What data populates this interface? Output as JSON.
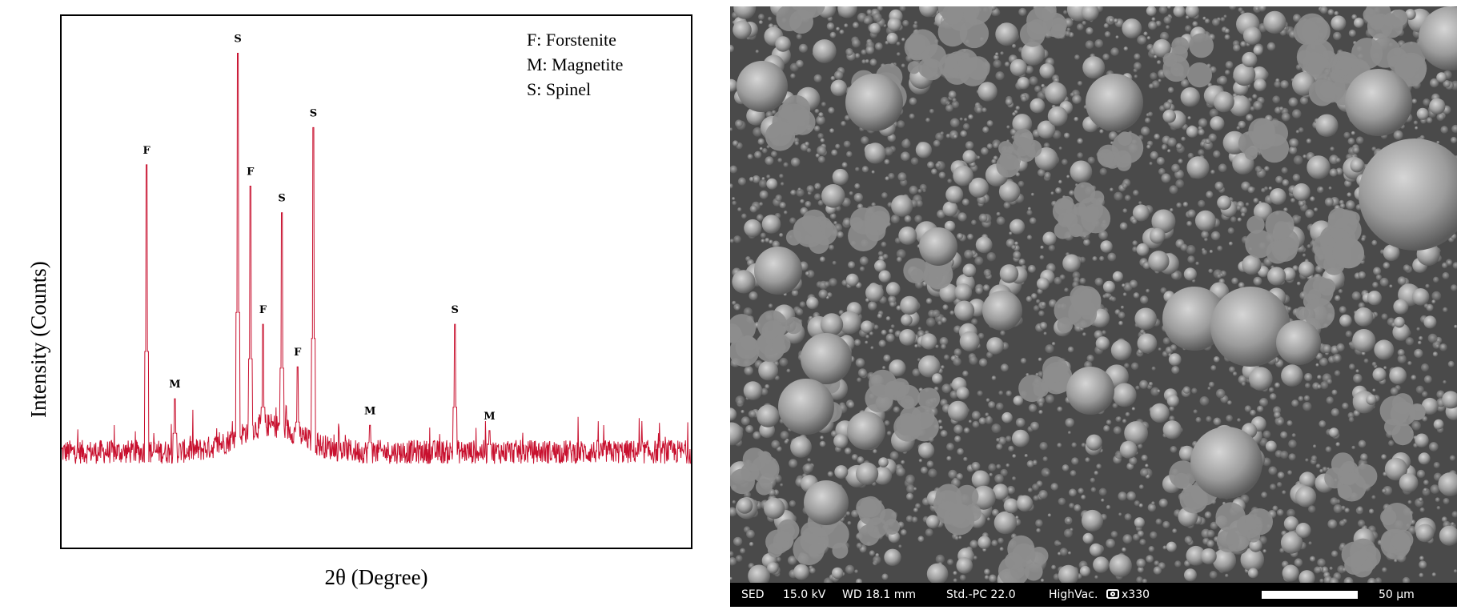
{
  "xrd": {
    "ylabel": "Intensity (Counts)",
    "xlabel": "2θ (Degree)",
    "legend": [
      "F: Forstenite",
      "M: Magnetite",
      "S: Spinel"
    ],
    "line_color": "#c8102e"
  },
  "chart_data": {
    "type": "line",
    "xlabel": "2θ (Degree)",
    "ylabel": "Intensity (Counts)",
    "axis_tick_labels": "none",
    "grid": false,
    "legend_position": "top-right",
    "x_range": [
      0,
      100
    ],
    "y_range": [
      0,
      100
    ],
    "baseline_level": 18,
    "peaks": [
      {
        "x": 13.5,
        "height": 72,
        "label": "F"
      },
      {
        "x": 18.0,
        "height": 28,
        "label": "M"
      },
      {
        "x": 28.0,
        "height": 93,
        "label": "S"
      },
      {
        "x": 30.0,
        "height": 68,
        "label": "F"
      },
      {
        "x": 32.0,
        "height": 42,
        "label": "F"
      },
      {
        "x": 35.0,
        "height": 63,
        "label": "S"
      },
      {
        "x": 37.5,
        "height": 34,
        "label": "F"
      },
      {
        "x": 40.0,
        "height": 79,
        "label": "S"
      },
      {
        "x": 49.0,
        "height": 23,
        "label": "M"
      },
      {
        "x": 62.5,
        "height": 42,
        "label": "S"
      },
      {
        "x": 68.0,
        "height": 22,
        "label": "M"
      }
    ]
  },
  "sem": {
    "mode": "SED",
    "voltage": "15.0 kV",
    "working_distance": "WD 18.1 mm",
    "probe": "Std.-PC 22.0",
    "vacuum": "HighVac.",
    "magnification": "x330",
    "scale_label": "50 µm",
    "icon": "camera-icon"
  }
}
